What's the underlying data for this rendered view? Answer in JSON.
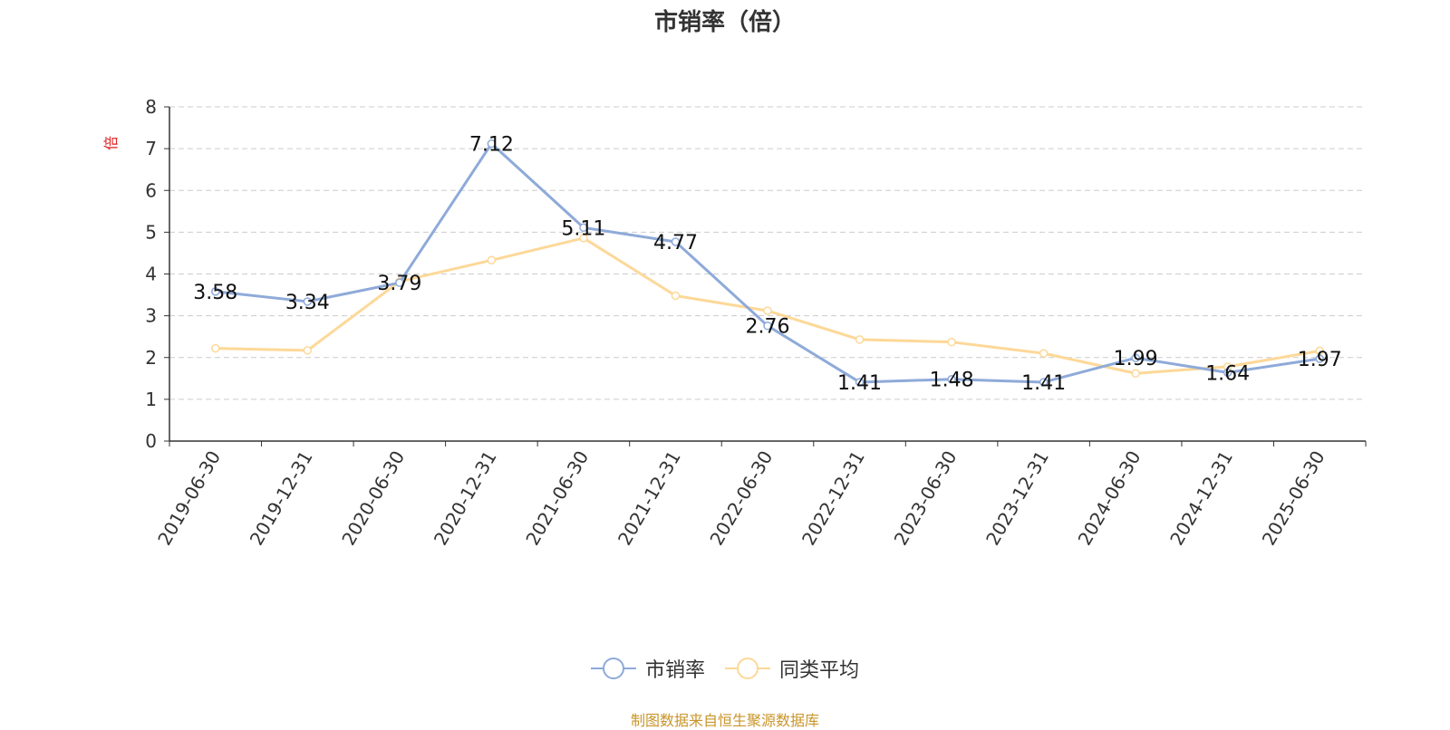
{
  "chart_data": {
    "type": "line",
    "title": "市销率（倍）",
    "ylabel": "倍",
    "ylim": [
      0,
      8
    ],
    "yticks": [
      0,
      1,
      2,
      3,
      4,
      5,
      6,
      7,
      8
    ],
    "grid": true,
    "legend_position": "bottom",
    "categories": [
      "2019-06-30",
      "2019-12-31",
      "2020-06-30",
      "2020-12-31",
      "2021-06-30",
      "2021-12-31",
      "2022-06-30",
      "2022-12-31",
      "2023-06-30",
      "2023-12-31",
      "2024-06-30",
      "2024-12-31",
      "2025-06-30"
    ],
    "series": [
      {
        "name": "市销率",
        "color": "#8eaad9",
        "show_labels": true,
        "values": [
          3.58,
          3.34,
          3.79,
          7.12,
          5.11,
          4.77,
          2.76,
          1.41,
          1.48,
          1.41,
          1.99,
          1.64,
          1.97
        ]
      },
      {
        "name": "同类平均",
        "color": "#fdd898",
        "show_labels": false,
        "values": [
          2.22,
          2.17,
          3.82,
          4.33,
          4.86,
          3.48,
          3.12,
          2.43,
          2.37,
          2.1,
          1.62,
          1.78,
          2.16
        ]
      }
    ]
  },
  "source": "制图数据来自恒生聚源数据库"
}
